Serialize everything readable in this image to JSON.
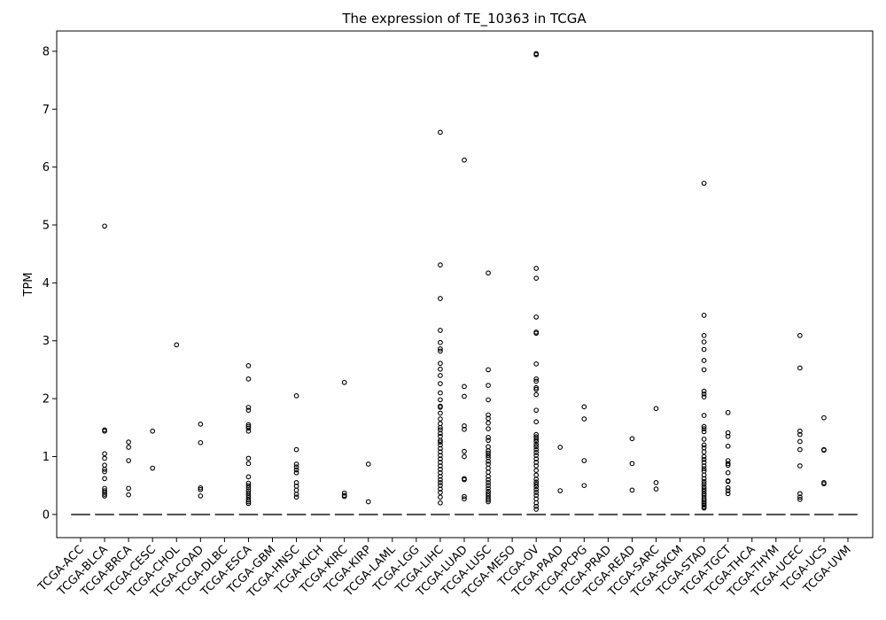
{
  "chart_data": {
    "type": "box",
    "title": "The expression of TE_10363 in TCGA",
    "xlabel": "",
    "ylabel": "TPM",
    "ylim": [
      -0.4,
      8.35
    ],
    "yticks": [
      0,
      1,
      2,
      3,
      4,
      5,
      6,
      7,
      8
    ],
    "grid": false,
    "categories": [
      "TCGA-ACC",
      "TCGA-BLCA",
      "TCGA-BRCA",
      "TCGA-CESC",
      "TCGA-CHOL",
      "TCGA-COAD",
      "TCGA-DLBC",
      "TCGA-ESCA",
      "TCGA-GBM",
      "TCGA-HNSC",
      "TCGA-KICH",
      "TCGA-KIRC",
      "TCGA-KIRP",
      "TCGA-LAML",
      "TCGA-LGG",
      "TCGA-LIHC",
      "TCGA-LUAD",
      "TCGA-LUSC",
      "TCGA-MESO",
      "TCGA-OV",
      "TCGA-PAAD",
      "TCGA-PCPG",
      "TCGA-PRAD",
      "TCGA-READ",
      "TCGA-SARC",
      "TCGA-SKCM",
      "TCGA-STAD",
      "TCGA-TGCT",
      "TCGA-THCA",
      "TCGA-THYM",
      "TCGA-UCEC",
      "TCGA-UCS",
      "TCGA-UVM"
    ],
    "median": [
      0,
      0,
      0,
      0,
      0,
      0,
      0,
      0,
      0,
      0,
      0,
      0,
      0,
      0,
      0,
      0,
      0,
      0,
      0,
      0,
      0,
      0,
      0,
      0,
      0,
      0,
      0,
      0,
      0,
      0,
      0,
      0,
      0
    ],
    "outliers": [
      [],
      [
        4.98,
        1.46,
        1.44,
        1.05,
        0.97,
        0.85,
        0.78,
        0.74,
        0.62,
        0.45,
        0.41,
        0.38,
        0.35,
        0.32
      ],
      [
        1.25,
        1.16,
        0.93,
        0.45,
        0.34
      ],
      [
        1.44,
        0.8
      ],
      [
        2.93
      ],
      [
        1.56,
        1.24,
        0.46,
        0.43,
        0.32
      ],
      [],
      [
        2.57,
        2.34,
        1.85,
        1.8,
        1.55,
        1.52,
        1.49,
        1.44,
        0.97,
        0.88,
        0.65,
        0.54,
        0.5,
        0.46,
        0.41,
        0.37,
        0.33,
        0.29,
        0.25,
        0.22,
        0.19
      ],
      [],
      [
        2.05,
        1.12,
        0.87,
        0.82,
        0.77,
        0.72,
        0.55,
        0.49,
        0.42,
        0.35,
        0.3
      ],
      [],
      [
        2.28,
        0.37,
        0.33,
        0.31
      ],
      [
        0.87,
        0.22
      ],
      [],
      [],
      [
        6.6,
        4.31,
        3.73,
        3.18,
        2.97,
        2.86,
        2.82,
        2.61,
        2.51,
        2.4,
        2.26,
        2.1,
        1.98,
        1.87,
        1.85,
        1.75,
        1.65,
        1.57,
        1.5,
        1.46,
        1.4,
        1.35,
        1.28,
        1.25,
        1.2,
        1.14,
        1.08,
        1.02,
        0.96,
        0.9,
        0.84,
        0.78,
        0.72,
        0.66,
        0.6,
        0.55,
        0.5,
        0.44,
        0.38,
        0.3,
        0.2
      ],
      [
        6.12,
        2.21,
        2.04,
        1.53,
        1.47,
        1.09,
        1.0,
        0.62,
        0.6,
        0.31,
        0.27
      ],
      [
        4.17,
        2.5,
        2.23,
        1.98,
        1.72,
        1.66,
        1.58,
        1.48,
        1.33,
        1.28,
        1.17,
        1.1,
        1.06,
        1.02,
        0.98,
        0.92,
        0.87,
        0.8,
        0.73,
        0.66,
        0.6,
        0.55,
        0.5,
        0.45,
        0.4,
        0.36,
        0.32,
        0.28,
        0.25,
        0.22
      ],
      [],
      [
        7.96,
        7.94,
        4.25,
        4.08,
        3.41,
        3.15,
        3.13,
        2.6,
        2.34,
        2.3,
        2.19,
        2.16,
        2.07,
        1.8,
        1.6,
        1.38,
        1.34,
        1.3,
        1.26,
        1.21,
        1.17,
        1.12,
        1.07,
        1.02,
        0.96,
        0.9,
        0.84,
        0.76,
        0.68,
        0.61,
        0.56,
        0.52,
        0.48,
        0.43,
        0.38,
        0.33,
        0.27,
        0.2,
        0.14,
        0.09
      ],
      [
        1.16,
        0.41
      ],
      [
        1.86,
        1.65,
        0.93,
        0.5
      ],
      [],
      [
        1.31,
        0.88,
        0.42
      ],
      [
        1.83,
        0.55,
        0.44
      ],
      [],
      [
        5.72,
        3.44,
        3.09,
        2.98,
        2.85,
        2.66,
        2.5,
        2.13,
        2.08,
        2.03,
        1.71,
        1.52,
        1.48,
        1.43,
        1.3,
        1.2,
        1.15,
        1.08,
        1.0,
        0.95,
        0.9,
        0.84,
        0.79,
        0.75,
        0.68,
        0.62,
        0.57,
        0.53,
        0.48,
        0.44,
        0.4,
        0.36,
        0.32,
        0.28,
        0.25,
        0.22,
        0.19,
        0.16,
        0.13,
        0.11
      ],
      [
        1.76,
        1.41,
        1.35,
        1.18,
        0.93,
        0.88,
        0.85,
        0.72,
        0.58,
        0.57,
        0.46,
        0.41,
        0.36
      ],
      [],
      [],
      [
        3.09,
        2.53,
        1.44,
        1.38,
        1.26,
        1.12,
        0.84,
        0.36,
        0.3,
        0.26
      ],
      [
        1.67,
        1.12,
        1.11,
        0.55,
        0.53
      ],
      []
    ]
  }
}
